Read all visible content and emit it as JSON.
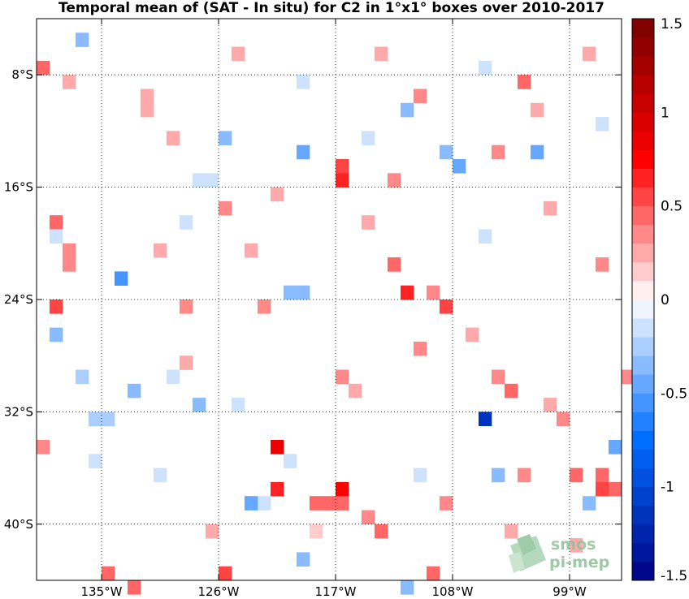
{
  "chart_data": {
    "type": "heatmap",
    "title": "Temporal mean of (SAT - In situ) for C2 in 1°x1° boxes over 2010-2017",
    "lon_range": [
      -140,
      -95
    ],
    "lat_range": [
      -44,
      -4
    ],
    "x_ticks": [
      {
        "value": -135,
        "label": "135°W"
      },
      {
        "value": -126,
        "label": "126°W"
      },
      {
        "value": -117,
        "label": "117°W"
      },
      {
        "value": -108,
        "label": "108°W"
      },
      {
        "value": -99,
        "label": "99°W"
      }
    ],
    "y_ticks": [
      {
        "value": -8,
        "label": "8°S"
      },
      {
        "value": -16,
        "label": "16°S"
      },
      {
        "value": -24,
        "label": "24°S"
      },
      {
        "value": -32,
        "label": "32°S"
      },
      {
        "value": -40,
        "label": "40°S"
      }
    ],
    "grid": true,
    "colorbar": {
      "min": -1.5,
      "max": 1.5,
      "levels": 30,
      "ticks": [
        {
          "value": 1.5,
          "label": "1.5"
        },
        {
          "value": 1,
          "label": "1"
        },
        {
          "value": 0.5,
          "label": "0.5"
        },
        {
          "value": 0,
          "label": "0"
        },
        {
          "value": -0.5,
          "label": "-0.5"
        },
        {
          "value": -1,
          "label": "-1"
        },
        {
          "value": -1.5,
          "label": "-1.5"
        }
      ]
    },
    "cells": [
      {
        "lon": -136.5,
        "lat": -5.5,
        "value": -0.3
      },
      {
        "lon": -139.5,
        "lat": -7.5,
        "value": 0.45
      },
      {
        "lon": -137.5,
        "lat": -8.5,
        "value": 0.2
      },
      {
        "lon": -131.5,
        "lat": -10.5,
        "value": 0.2
      },
      {
        "lon": -129.5,
        "lat": -12.5,
        "value": 0.2
      },
      {
        "lon": -125.5,
        "lat": -12.5,
        "value": -0.35
      },
      {
        "lon": -119.5,
        "lat": -13.5,
        "value": -0.45
      },
      {
        "lon": -116.5,
        "lat": -15.5,
        "value": 0.6
      },
      {
        "lon": -116.5,
        "lat": -14.5,
        "value": 0.5
      },
      {
        "lon": -114.5,
        "lat": -12.5,
        "value": -0.2
      },
      {
        "lon": -108.5,
        "lat": -13.5,
        "value": -0.35
      },
      {
        "lon": -107.5,
        "lat": -14.5,
        "value": -0.45
      },
      {
        "lon": -104.5,
        "lat": -13.5,
        "value": 0.3
      },
      {
        "lon": -101.5,
        "lat": -13.5,
        "value": -0.45
      },
      {
        "lon": -101.5,
        "lat": -10.5,
        "value": 0.25
      },
      {
        "lon": -102.5,
        "lat": -8.5,
        "value": 0.45
      },
      {
        "lon": -110.5,
        "lat": -9.5,
        "value": 0.35
      },
      {
        "lon": -111.5,
        "lat": -10.5,
        "value": -0.3
      },
      {
        "lon": -126.5,
        "lat": -15.5,
        "value": -0.2
      },
      {
        "lon": -127.5,
        "lat": -15.5,
        "value": -0.15
      },
      {
        "lon": -125.5,
        "lat": -17.5,
        "value": 0.3
      },
      {
        "lon": -121.5,
        "lat": -16.5,
        "value": 0.25
      },
      {
        "lon": -112.5,
        "lat": -15.5,
        "value": 0.3
      },
      {
        "lon": -138.5,
        "lat": -18.5,
        "value": 0.45
      },
      {
        "lon": -138.5,
        "lat": -19.5,
        "value": -0.15
      },
      {
        "lon": -137.5,
        "lat": -21.5,
        "value": 0.3
      },
      {
        "lon": -137.5,
        "lat": -20.5,
        "value": 0.35
      },
      {
        "lon": -133.5,
        "lat": -22.5,
        "value": -0.6
      },
      {
        "lon": -112.5,
        "lat": -21.5,
        "value": 0.45
      },
      {
        "lon": -111.5,
        "lat": -23.5,
        "value": 0.65
      },
      {
        "lon": -120.5,
        "lat": -23.5,
        "value": -0.3
      },
      {
        "lon": -119.5,
        "lat": -23.5,
        "value": -0.3
      },
      {
        "lon": -109.5,
        "lat": -23.5,
        "value": 0.3
      },
      {
        "lon": -138.5,
        "lat": -24.5,
        "value": 0.55
      },
      {
        "lon": -138.5,
        "lat": -26.5,
        "value": -0.35
      },
      {
        "lon": -108.5,
        "lat": -24.5,
        "value": 0.5
      },
      {
        "lon": -128.5,
        "lat": -24.5,
        "value": 0.3
      },
      {
        "lon": -122.5,
        "lat": -24.5,
        "value": 0.3
      },
      {
        "lon": -96.5,
        "lat": -21.5,
        "value": 0.35
      },
      {
        "lon": -94.5,
        "lat": -29.5,
        "value": 0.3
      },
      {
        "lon": -104.5,
        "lat": -29.5,
        "value": 0.3
      },
      {
        "lon": -103.5,
        "lat": -30.5,
        "value": 0.4
      },
      {
        "lon": -136.5,
        "lat": -29.5,
        "value": -0.25
      },
      {
        "lon": -132.5,
        "lat": -30.5,
        "value": -0.4
      },
      {
        "lon": -127.5,
        "lat": -31.5,
        "value": -0.3
      },
      {
        "lon": -135.5,
        "lat": -32.5,
        "value": -0.25
      },
      {
        "lon": -134.5,
        "lat": -32.5,
        "value": -0.25
      },
      {
        "lon": -105.5,
        "lat": -32.5,
        "value": -1.1
      },
      {
        "lon": -121.5,
        "lat": -34.5,
        "value": 0.85
      },
      {
        "lon": -139.5,
        "lat": -34.5,
        "value": 0.3
      },
      {
        "lon": -120.5,
        "lat": -35.5,
        "value": -0.2
      },
      {
        "lon": -104.5,
        "lat": -36.5,
        "value": -0.4
      },
      {
        "lon": -102.5,
        "lat": -36.5,
        "value": 0.3
      },
      {
        "lon": -98.5,
        "lat": -36.5,
        "value": 0.45
      },
      {
        "lon": -96.5,
        "lat": -36.5,
        "value": 0.4
      },
      {
        "lon": -95.5,
        "lat": -34.5,
        "value": -0.5
      },
      {
        "lon": -121.5,
        "lat": -37.5,
        "value": 0.6
      },
      {
        "lon": -116.5,
        "lat": -37.5,
        "value": 0.7
      },
      {
        "lon": -122.5,
        "lat": -38.5,
        "value": -0.15
      },
      {
        "lon": -123.5,
        "lat": -38.5,
        "value": -0.5
      },
      {
        "lon": -118.5,
        "lat": -38.5,
        "value": 0.45
      },
      {
        "lon": -117.5,
        "lat": -38.5,
        "value": 0.45
      },
      {
        "lon": -116.5,
        "lat": -38.5,
        "value": 0.4
      },
      {
        "lon": -96.5,
        "lat": -37.5,
        "value": 0.55
      },
      {
        "lon": -95.5,
        "lat": -37.5,
        "value": 0.45
      },
      {
        "lon": -97.5,
        "lat": -38.5,
        "value": -0.35
      },
      {
        "lon": -108.5,
        "lat": -38.5,
        "value": 0.3
      },
      {
        "lon": -114.5,
        "lat": -39.5,
        "value": 0.3
      },
      {
        "lon": -113.5,
        "lat": -40.5,
        "value": 0.45
      },
      {
        "lon": -118.5,
        "lat": -40.5,
        "value": 0.15
      },
      {
        "lon": -119.5,
        "lat": -42.5,
        "value": -0.35
      },
      {
        "lon": -134.5,
        "lat": -43.5,
        "value": 0.4
      },
      {
        "lon": -132.5,
        "lat": -44.5,
        "value": 0.45
      },
      {
        "lon": -125.5,
        "lat": -43.5,
        "value": 0.5
      },
      {
        "lon": -109.5,
        "lat": -43.5,
        "value": 0.45
      },
      {
        "lon": -111.5,
        "lat": -44.5,
        "value": -0.35
      },
      {
        "lon": -128.5,
        "lat": -28.5,
        "value": 0.2
      },
      {
        "lon": -129.5,
        "lat": -29.5,
        "value": -0.2
      },
      {
        "lon": -124.5,
        "lat": -31.5,
        "value": -0.2
      },
      {
        "lon": -116.5,
        "lat": -29.5,
        "value": 0.3
      },
      {
        "lon": -115.5,
        "lat": -30.5,
        "value": 0.25
      },
      {
        "lon": -110.5,
        "lat": -27.5,
        "value": 0.3
      },
      {
        "lon": -100.5,
        "lat": -31.5,
        "value": 0.25
      },
      {
        "lon": -99.5,
        "lat": -32.5,
        "value": 0.3
      },
      {
        "lon": -130.5,
        "lat": -20.5,
        "value": 0.2
      },
      {
        "lon": -128.5,
        "lat": -18.5,
        "value": -0.2
      },
      {
        "lon": -123.5,
        "lat": -20.5,
        "value": 0.2
      },
      {
        "lon": -114.5,
        "lat": -18.5,
        "value": 0.2
      },
      {
        "lon": -105.5,
        "lat": -19.5,
        "value": -0.2
      },
      {
        "lon": -100.5,
        "lat": -17.5,
        "value": 0.2
      },
      {
        "lon": -106.5,
        "lat": -26.5,
        "value": 0.2
      },
      {
        "lon": -135.5,
        "lat": -35.5,
        "value": -0.15
      },
      {
        "lon": -130.5,
        "lat": -36.5,
        "value": -0.15
      },
      {
        "lon": -126.5,
        "lat": -40.5,
        "value": 0.2
      },
      {
        "lon": -110.5,
        "lat": -36.5,
        "value": -0.2
      },
      {
        "lon": -103.5,
        "lat": -40.5,
        "value": 0.2
      },
      {
        "lon": -98.5,
        "lat": -41.5,
        "value": 0.2
      },
      {
        "lon": -131.5,
        "lat": -9.5,
        "value": 0.2
      },
      {
        "lon": -124.5,
        "lat": -6.5,
        "value": 0.2
      },
      {
        "lon": -119.5,
        "lat": -8.5,
        "value": -0.15
      },
      {
        "lon": -113.5,
        "lat": -6.5,
        "value": 0.2
      },
      {
        "lon": -105.5,
        "lat": -7.5,
        "value": -0.15
      },
      {
        "lon": -97.5,
        "lat": -6.5,
        "value": 0.2
      },
      {
        "lon": -96.5,
        "lat": -11.5,
        "value": -0.15
      }
    ]
  },
  "logo": {
    "line1": "smos",
    "line2": "pi-mep"
  }
}
